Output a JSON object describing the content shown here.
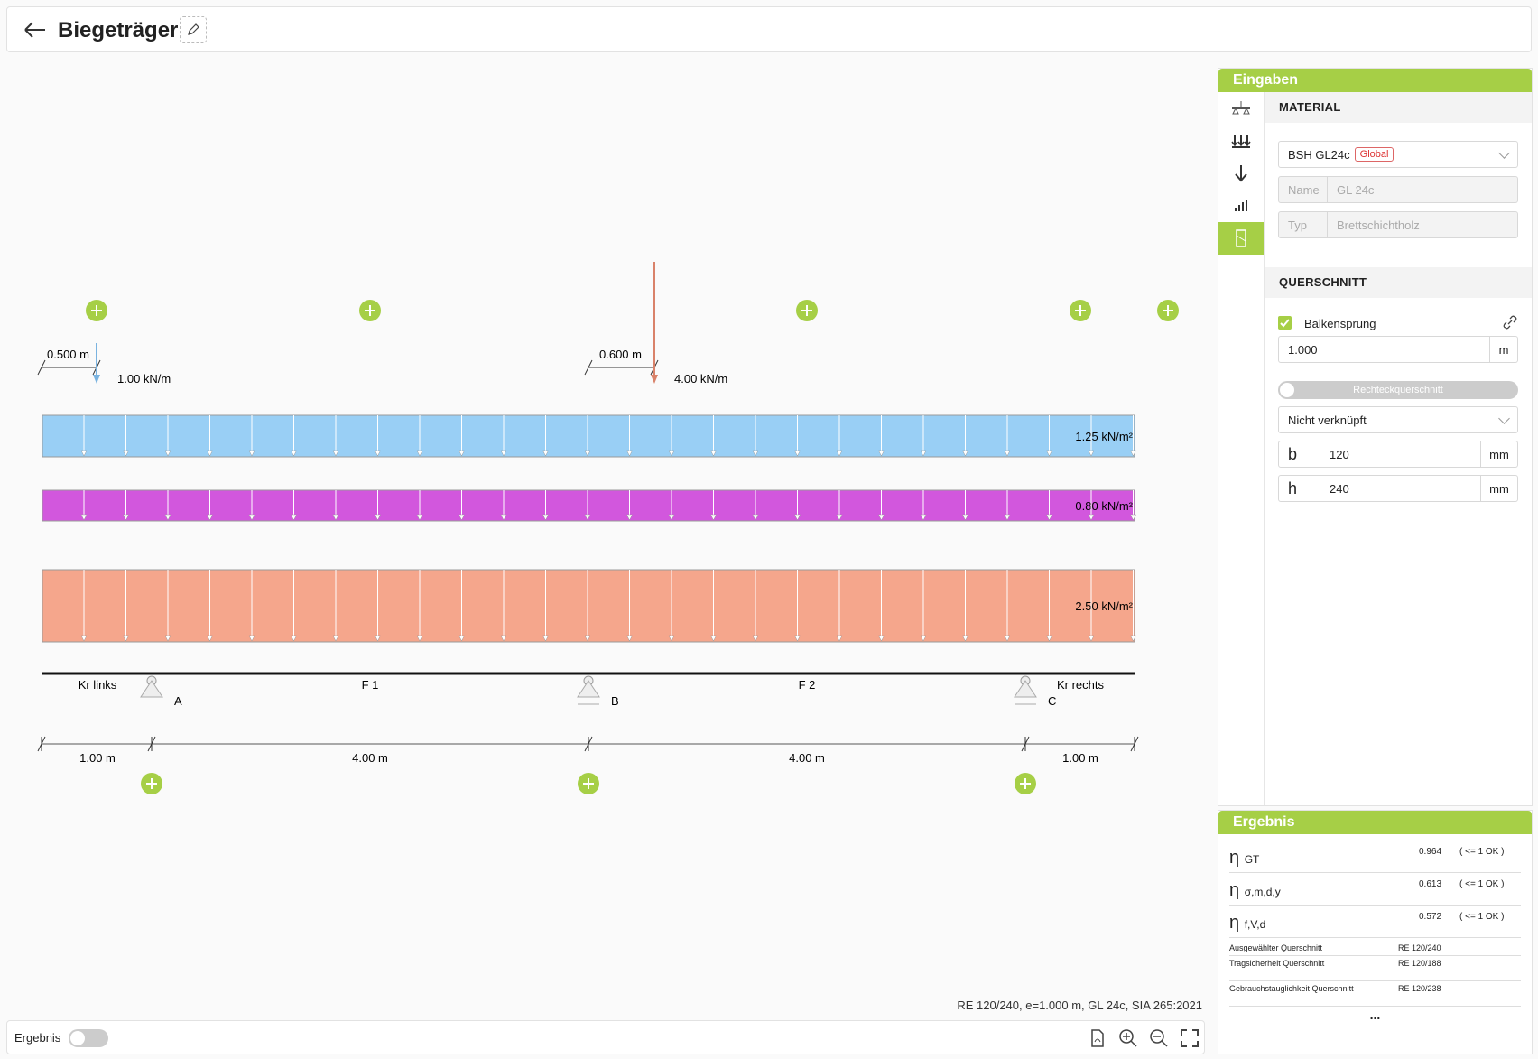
{
  "header": {
    "title": "Biegeträger"
  },
  "icons": {
    "back": "arrow-left-icon",
    "edit": "pencil-icon"
  },
  "beam": {
    "point_loads": [
      {
        "distance_label": "0.500 m",
        "value_label": "1.00 kN/m",
        "color": "#7ab3e0"
      },
      {
        "distance_label": "0.600 m",
        "value_label": "4.00 kN/m",
        "color": "#d9826a"
      }
    ],
    "area_loads": [
      {
        "label": "1.25 kN/m²",
        "color": "#99cff5"
      },
      {
        "label": "0.80 kN/m²",
        "color": "#d257dd"
      },
      {
        "label": "2.50 kN/m²",
        "color": "#f5a68c"
      }
    ],
    "span_labels": [
      "Kr links",
      "F 1",
      "F 2",
      "Kr rechts"
    ],
    "supports": [
      "A",
      "B",
      "C"
    ],
    "dimensions": [
      "1.00 m",
      "4.00 m",
      "4.00 m",
      "1.00 m"
    ]
  },
  "summary": "RE 120/240, e=1.000 m, GL 24c, SIA 265:2021",
  "footer": {
    "toggle_label": "Ergebnis"
  },
  "panel": {
    "title": "Eingaben",
    "material": {
      "section_title": "MATERIAL",
      "selected": "BSH GL24c",
      "badge": "Global",
      "name_label": "Name",
      "name_value": "GL 24c",
      "type_label": "Typ",
      "type_value": "Brettschichtholz"
    },
    "querschnitt": {
      "section_title": "QUERSCHNITT",
      "checkbox_label": "Balkensprung",
      "spacing_value": "1.000",
      "spacing_unit": "m",
      "shape_toggle": "Rechteckquerschnitt",
      "link_select": "Nicht verknüpft",
      "b_label": "b",
      "b_value": "120",
      "b_unit": "mm",
      "h_label": "h",
      "h_value": "240",
      "h_unit": "mm"
    }
  },
  "result": {
    "title": "Ergebnis",
    "etas": [
      {
        "symbol": "η",
        "sub": "GT",
        "value": "0.964",
        "ok": "( <= 1 OK )"
      },
      {
        "symbol": "η",
        "sub": "σ,m,d,y",
        "value": "0.613",
        "ok": "( <= 1 OK )"
      },
      {
        "symbol": "η",
        "sub": "f,V,d",
        "value": "0.572",
        "ok": "( <= 1 OK )"
      }
    ],
    "rows": [
      {
        "key": "Ausgewählter Querschnitt",
        "value": "RE 120/240"
      },
      {
        "key": "Tragsicherheit Querschnitt",
        "value": "RE 120/188"
      },
      {
        "key": "Gebrauchstauglichkeit Querschnitt",
        "value": "RE 120/238"
      }
    ],
    "more": "..."
  }
}
